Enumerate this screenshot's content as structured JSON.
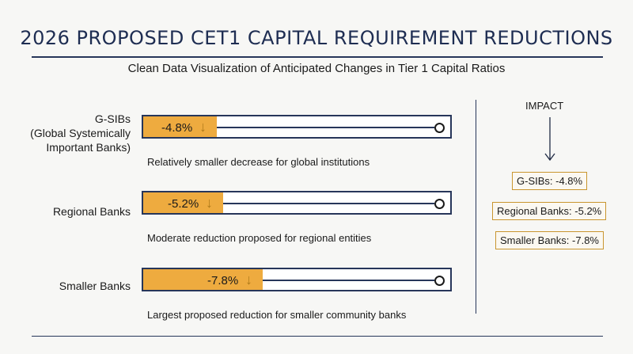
{
  "title": "2026 PROPOSED CET1 CAPITAL REQUIREMENT REDUCTIONS",
  "subtitle": "Clean Data Visualization of Anticipated Changes in Tier 1 Capital Ratios",
  "colors": {
    "bar_fill": "#eeab3f",
    "frame": "#27365a",
    "badge_border": "#c9962f"
  },
  "chart_data": {
    "type": "bar",
    "orientation": "horizontal",
    "categories": [
      "G-SIBs\n(Global Systemically\nImportant Banks)",
      "Regional Banks",
      "Smaller Banks"
    ],
    "values": [
      -4.8,
      -5.2,
      -7.8
    ],
    "value_labels": [
      "-4.8%",
      "-5.2%",
      "-7.8%"
    ],
    "descriptions": [
      "Relatively smaller decrease for global institutions",
      "Moderate reduction proposed for regional entities",
      "Largest proposed reduction for smaller community banks"
    ]
  },
  "impact": {
    "title": "IMPACT",
    "items": [
      "G-SIBs: -4.8%",
      "Regional Banks: -5.2%",
      "Smaller Banks: -7.8%"
    ]
  }
}
